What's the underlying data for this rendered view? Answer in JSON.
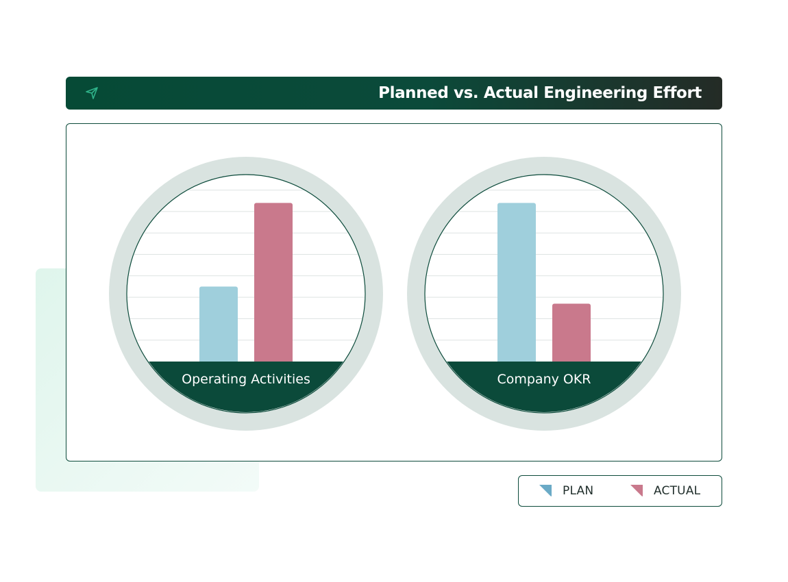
{
  "header": {
    "title": "Planned vs. Actual Engineering Effort",
    "icon": "paper-plane-icon"
  },
  "colors": {
    "plan": "#9fcfdc",
    "actual": "#c9798c",
    "accent": "#0b4a3a",
    "ring": "#d9e3e0",
    "grid": "#dde3e2"
  },
  "legend": {
    "items": [
      {
        "label": "PLAN",
        "color": "#6aaac6"
      },
      {
        "label": "ACTUAL",
        "color": "#c9798c"
      }
    ]
  },
  "chart_data": [
    {
      "type": "bar",
      "categories": [
        "Operating Activities"
      ],
      "series": [
        {
          "name": "PLAN",
          "values": [
            3.5
          ]
        },
        {
          "name": "ACTUAL",
          "values": [
            7.4
          ]
        }
      ],
      "ylim": [
        0,
        8
      ],
      "grid": true
    },
    {
      "type": "bar",
      "categories": [
        "Company OKR"
      ],
      "series": [
        {
          "name": "PLAN",
          "values": [
            7.4
          ]
        },
        {
          "name": "ACTUAL",
          "values": [
            2.7
          ]
        }
      ],
      "ylim": [
        0,
        8
      ],
      "grid": true
    }
  ]
}
